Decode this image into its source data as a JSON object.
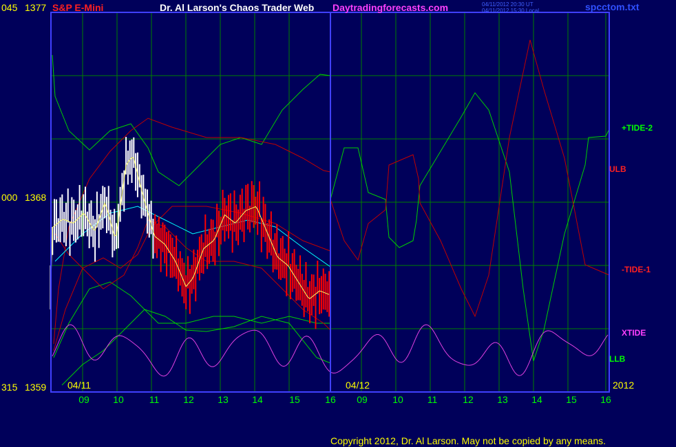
{
  "header": {
    "instrument": "S&P E-Mini",
    "title": "Dr. Al Larson's Chaos Trader Web",
    "site": "Daytradingforecasts.com",
    "timestamp_ut": "04/11/2012 20:30 UT",
    "timestamp_local": "04/11/2012 15:30 Local",
    "filename": "spcctom.txt"
  },
  "footer": {
    "copyright": "Copyright 2012, Dr. Al Larson. May not be copied by any means."
  },
  "colors": {
    "background": "#00005a",
    "grid": "#008000",
    "axis": "#4040ff",
    "white_bar": "#ffffff",
    "red_bar": "#ff0000",
    "ma_yellow": "#ffff66",
    "ma_cyan": "#00ffff",
    "green_line": "#00d000",
    "red_line": "#c00000",
    "xtide": "#e040e0",
    "title_red": "#ff2020",
    "title_white": "#ffffff",
    "site_magenta": "#ff40ff",
    "tick_green": "#00ff00",
    "date_yellow": "#ffff00"
  },
  "chart_data": {
    "type": "line",
    "y_axis_left": {
      "ticks": [
        {
          "left": "045",
          "price": "1377",
          "value": 1377
        },
        {
          "left": "000",
          "price": "1368",
          "value": 1368
        },
        {
          "left": "315",
          "price": "1359",
          "value": 1359
        }
      ],
      "ylim": [
        1359,
        1377
      ]
    },
    "x_axis": {
      "hour_ticks": [
        "09",
        "10",
        "11",
        "12",
        "13",
        "14",
        "15",
        "16",
        "09",
        "10",
        "11",
        "12",
        "13",
        "14",
        "15",
        "16"
      ],
      "date_labels": [
        "04/11",
        "04/12",
        "2012"
      ]
    },
    "series_labels": {
      "tide2": "+TIDE-2",
      "ulb": "ULB",
      "tide1": "-TIDE-1",
      "xtide": "XTIDE",
      "llb": "LLB"
    },
    "price_bars": {
      "start_hour": 8.05,
      "hourly_points": [
        {
          "h": 8.1,
          "p": 1366.8
        },
        {
          "h": 8.4,
          "p": 1367.2
        },
        {
          "h": 8.7,
          "p": 1367.0
        },
        {
          "h": 9.0,
          "p": 1367.5
        },
        {
          "h": 9.3,
          "p": 1366.6
        },
        {
          "h": 9.6,
          "p": 1368.0
        },
        {
          "h": 9.9,
          "p": 1366.2
        },
        {
          "h": 10.2,
          "p": 1369.8
        },
        {
          "h": 10.4,
          "p": 1370.2
        },
        {
          "h": 10.6,
          "p": 1368.8
        },
        {
          "h": 10.8,
          "p": 1367.6
        },
        {
          "h": 11.0,
          "p": 1366.4
        },
        {
          "h": 11.3,
          "p": 1366.0
        },
        {
          "h": 11.6,
          "p": 1365.2
        },
        {
          "h": 11.9,
          "p": 1364.0
        },
        {
          "h": 12.1,
          "p": 1364.4
        },
        {
          "h": 12.4,
          "p": 1365.8
        },
        {
          "h": 12.7,
          "p": 1366.2
        },
        {
          "h": 13.0,
          "p": 1367.4
        },
        {
          "h": 13.3,
          "p": 1367.0
        },
        {
          "h": 13.6,
          "p": 1367.6
        },
        {
          "h": 13.9,
          "p": 1367.8
        },
        {
          "h": 14.2,
          "p": 1366.6
        },
        {
          "h": 14.5,
          "p": 1365.4
        },
        {
          "h": 14.8,
          "p": 1365.0
        },
        {
          "h": 15.1,
          "p": 1364.2
        },
        {
          "h": 15.4,
          "p": 1363.4
        },
        {
          "h": 15.7,
          "p": 1363.8
        },
        {
          "h": 16.0,
          "p": 1363.6
        }
      ],
      "red_after_hour": 11.0
    }
  }
}
